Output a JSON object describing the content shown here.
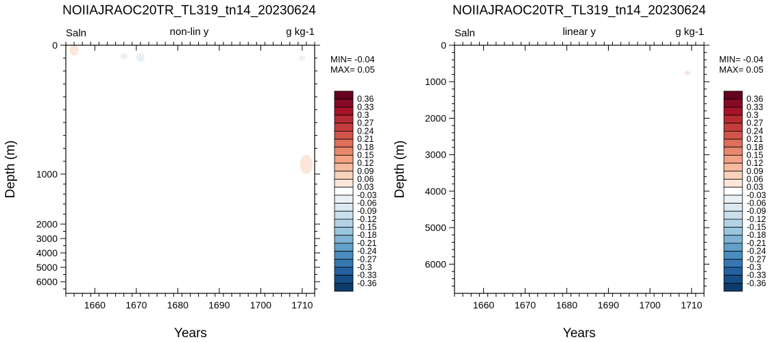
{
  "chart_data": [
    {
      "type": "heatmap",
      "title": "NOIIAJRAOC20TR_TL319_tn14_20230624",
      "left_label": "Saln",
      "center_label": "non-lin y",
      "right_label": "g kg-1",
      "xlabel": "Years",
      "ylabel": "Depth (m)",
      "xlim": [
        1653,
        1713
      ],
      "x_ticks": [
        1660,
        1670,
        1680,
        1690,
        1700,
        1710
      ],
      "y_scale": "non-linear",
      "y_ticks": [
        "0",
        "1000",
        "2000",
        "3000",
        "4000",
        "5000",
        "6000"
      ],
      "min_text": "MIN= -0.04",
      "max_text": "MAX=  0.05",
      "features": [
        {
          "year": 1655,
          "depth_range": [
            0,
            80
          ],
          "class": "0.03 to 0.06"
        },
        {
          "year": 1667,
          "depth_range": [
            60,
            110
          ],
          "class": "-0.03 to -0.06"
        },
        {
          "year": 1671,
          "depth_range": [
            60,
            130
          ],
          "class": "-0.03 to -0.06"
        },
        {
          "year": 1710,
          "depth_range": [
            80,
            120
          ],
          "class": "-0.03 to -0.06"
        },
        {
          "year": 1711,
          "depth_range": [
            850,
            1000
          ],
          "class": "0.03 to 0.06"
        }
      ]
    },
    {
      "type": "heatmap",
      "title": "NOIIAJRAOC20TR_TL319_tn14_20230624",
      "left_label": "Saln",
      "center_label": "linear y",
      "right_label": "g kg-1",
      "xlabel": "Years",
      "ylabel": "Depth (m)",
      "xlim": [
        1653,
        1713
      ],
      "x_ticks": [
        1660,
        1670,
        1680,
        1690,
        1700,
        1710
      ],
      "y_scale": "linear",
      "ylim": [
        6800,
        0
      ],
      "y_ticks": [
        "0",
        "1000",
        "2000",
        "3000",
        "4000",
        "5000",
        "6000"
      ],
      "min_text": "MIN= -0.04",
      "max_text": "MAX=  0.05",
      "features": [
        {
          "year": 1709,
          "depth_range": [
            700,
            820
          ],
          "class": "0.03 to 0.06"
        }
      ]
    }
  ],
  "colorbar": {
    "labels": [
      "0.36",
      "0.33",
      "0.3",
      "0.27",
      "0.24",
      "0.21",
      "0.18",
      "0.15",
      "0.12",
      "0.09",
      "0.06",
      "0.03",
      "-0.03",
      "-0.06",
      "-0.09",
      "-0.12",
      "-0.15",
      "-0.18",
      "-0.21",
      "-0.24",
      "-0.27",
      "-0.3",
      "-0.33",
      "-0.36"
    ],
    "colors": [
      "#67001f",
      "#870a24",
      "#a51429",
      "#b72a33",
      "#c43c3c",
      "#d1544a",
      "#dc6e5a",
      "#e7886c",
      "#f0a283",
      "#f6bb9f",
      "#f9d2bc",
      "#fce6da",
      "#ffffff",
      "#e9f1f6",
      "#dbe9f2",
      "#cadfec",
      "#b4d3e6",
      "#9ac5de",
      "#7fb2d4",
      "#62a0ca",
      "#4a8cbf",
      "#3777b1",
      "#22619e",
      "#134e85",
      "#0b3c6c"
    ]
  }
}
